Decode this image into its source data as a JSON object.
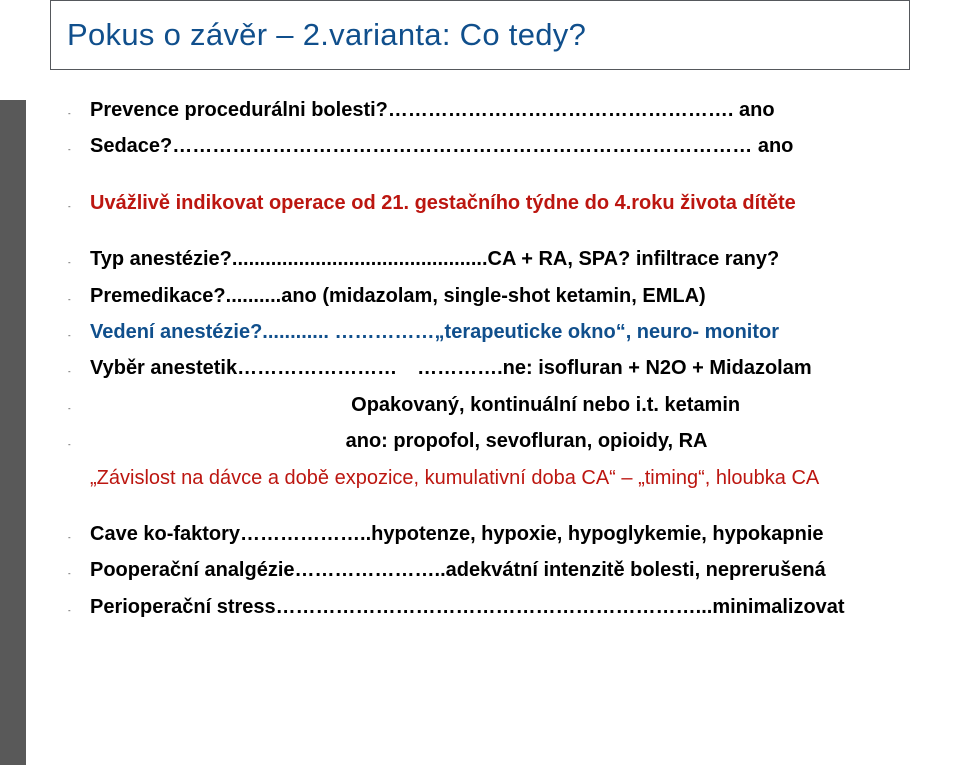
{
  "title": "Pokus o závěr – 2.varianta: Co tedy?",
  "lines": [
    {
      "bullet": true,
      "cls": "black bold",
      "text": "Prevence procedurálni bolesti?……………………………………………. ano"
    },
    {
      "bullet": true,
      "cls": "black bold",
      "text": "Sedace?…………………………………………………………………………… ano"
    },
    {
      "bullet": false,
      "cls": "spacer",
      "text": ""
    },
    {
      "bullet": true,
      "cls": "red bold",
      "text": "Uvážlivě indikovat operace od 21. gestačního týdne do 4.roku života dítěte"
    },
    {
      "bullet": false,
      "cls": "spacer",
      "text": ""
    },
    {
      "bullet": true,
      "cls": "black bold",
      "text": "Typ anestézie?..............................................CA + RA, SPA? infiltrace rany?"
    },
    {
      "bullet": true,
      "cls": "black bold",
      "text": "Premedikace?..........ano (midazolam, single-shot ketamin, EMLA)"
    },
    {
      "bullet": true,
      "cls": "blue bold",
      "text": "Vedení anestézie?............ ……………„terapeuticke okno“, neuro-  monitor"
    },
    {
      "bullet": true,
      "cls": "black bold",
      "text": "Vyběr anestetik…………………… ………….ne: isofluran + N2O + Midazolam"
    },
    {
      "bullet": true,
      "cls": "black bold",
      "text": "                                               Opakovaný, kontinuální nebo i.t. ketamin"
    },
    {
      "bullet": true,
      "cls": "black bold",
      "text": "                                              ano: propofol, sevofluran, opioidy, RA"
    },
    {
      "bullet": false,
      "cls": "red",
      "text": "„Závislost na dávce a době expozice, kumulativní doba CA“ – „timing“, hloubka CA"
    },
    {
      "bullet": false,
      "cls": "spacer",
      "text": ""
    },
    {
      "bullet": true,
      "cls": "black bold",
      "text": "Cave ko-faktory………………..hypotenze, hypoxie, hypoglykemie, hypokapnie"
    },
    {
      "bullet": true,
      "cls": "black bold",
      "text": "Pooperační analgézie…………………..adekvátní intenzitě bolesti, neprerušená"
    },
    {
      "bullet": true,
      "cls": "black bold",
      "text": "Perioperační stress………………………………………………………...minimalizovat"
    }
  ]
}
